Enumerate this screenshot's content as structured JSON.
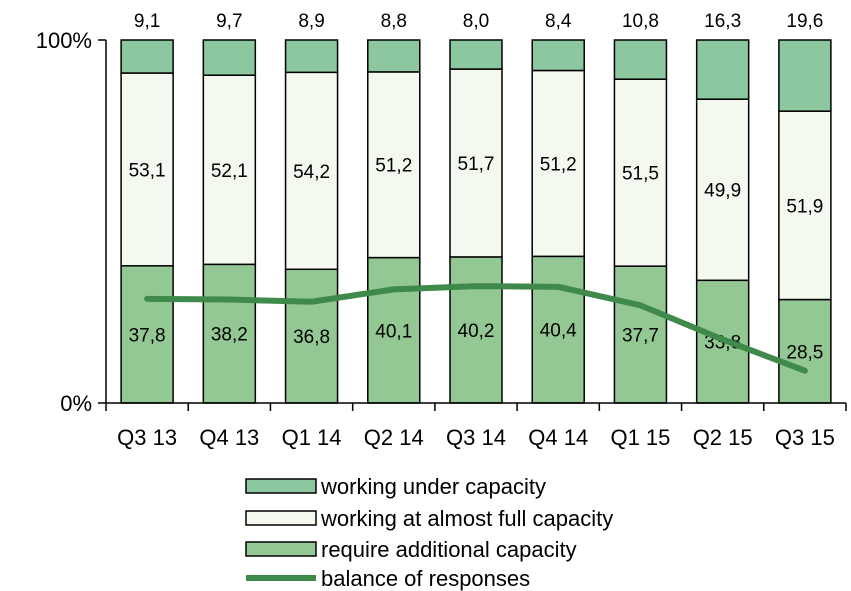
{
  "chart_data": {
    "type": "bar",
    "stacked": true,
    "percent_stacked": true,
    "categories": [
      "Q3 13",
      "Q4 13",
      "Q1 14",
      "Q2 14",
      "Q3 14",
      "Q4 14",
      "Q1 15",
      "Q2 15",
      "Q3 15"
    ],
    "series": [
      {
        "name": "require additional capacity",
        "color": "#93c894",
        "values": [
          37.8,
          38.2,
          36.8,
          40.1,
          40.2,
          40.4,
          37.7,
          33.8,
          28.5
        ],
        "labels": [
          "37,8",
          "38,2",
          "36,8",
          "40,1",
          "40,2",
          "40,4",
          "37,7",
          "33,8",
          "28,5"
        ]
      },
      {
        "name": "working at almost full capacity",
        "color": "#f3f9ee",
        "values": [
          53.1,
          52.1,
          54.2,
          51.2,
          51.7,
          51.2,
          51.5,
          49.9,
          51.9
        ],
        "labels": [
          "53,1",
          "52,1",
          "54,2",
          "51,2",
          "51,7",
          "51,2",
          "51,5",
          "49,9",
          "51,9"
        ]
      },
      {
        "name": "working under capacity",
        "color": "#8cc7a0",
        "values": [
          9.1,
          9.7,
          8.9,
          8.8,
          8.0,
          8.4,
          10.8,
          16.3,
          19.6
        ],
        "labels": [
          "9,1",
          "9,7",
          "8,9",
          "8,8",
          "8,0",
          "8,4",
          "10,8",
          "16,3",
          "19,6"
        ]
      }
    ],
    "line_series": {
      "name": "balance of responses",
      "color": "#3f8a4a",
      "values": [
        28.7,
        28.5,
        27.9,
        31.3,
        32.2,
        32.0,
        26.9,
        17.5,
        8.9
      ]
    },
    "y_ticks": [
      "0%",
      "100%"
    ],
    "ylim": [
      0,
      100
    ],
    "grid": false,
    "legend_position": "bottom"
  }
}
